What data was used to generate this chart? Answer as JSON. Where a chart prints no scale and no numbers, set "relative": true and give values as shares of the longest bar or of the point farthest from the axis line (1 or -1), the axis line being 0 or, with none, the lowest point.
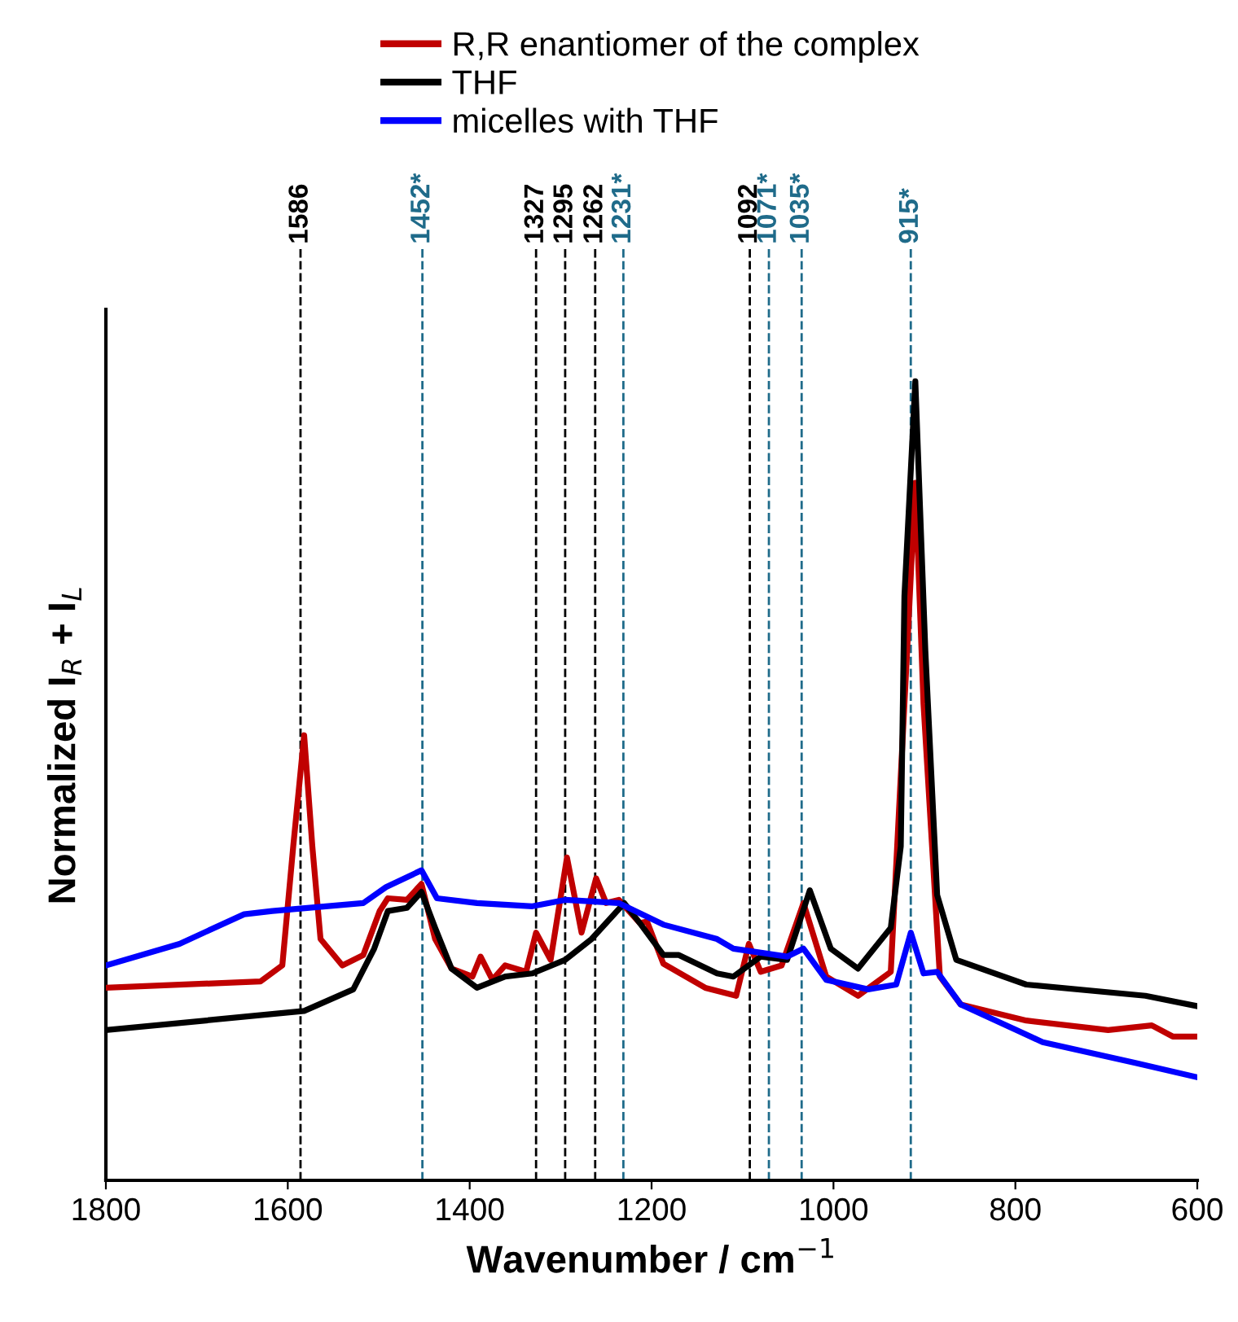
{
  "chart_data": {
    "type": "line",
    "xlabel": "Wavenumber / cm$^{−1}$",
    "ylabel": "Normalized I$_{R}$ + I$_{L}$",
    "relative": true,
    "xlim": [
      1800,
      600
    ],
    "xticks": [
      1800,
      1600,
      1400,
      1200,
      1000,
      800,
      600
    ],
    "grid": false,
    "legend": "top",
    "marker": "none",
    "line_style": "solid",
    "series": [
      {
        "name": "R,R enantiomer of the complex",
        "color": "#c00000",
        "x": [
          1800,
          1630,
          1606,
          1594,
          1582,
          1573,
          1564,
          1540,
          1517,
          1499,
          1490,
          1469,
          1453,
          1438,
          1420,
          1397,
          1388,
          1375,
          1361,
          1338,
          1327,
          1311,
          1293,
          1277,
          1261,
          1250,
          1236,
          1213,
          1205,
          1187,
          1141,
          1107,
          1093,
          1080,
          1057,
          1033,
          1008,
          973,
          937,
          919,
          910,
          901,
          883,
          860,
          788,
          698,
          650,
          627,
          600
        ],
        "values": [
          0.241,
          0.249,
          0.269,
          0.418,
          0.557,
          0.418,
          0.302,
          0.269,
          0.282,
          0.337,
          0.353,
          0.351,
          0.371,
          0.302,
          0.265,
          0.255,
          0.28,
          0.251,
          0.269,
          0.261,
          0.31,
          0.276,
          0.404,
          0.31,
          0.378,
          0.347,
          0.351,
          0.322,
          0.324,
          0.271,
          0.241,
          0.231,
          0.296,
          0.261,
          0.269,
          0.347,
          0.255,
          0.231,
          0.261,
          0.663,
          0.873,
          0.596,
          0.255,
          0.22,
          0.2,
          0.188,
          0.194,
          0.18,
          0.18
        ]
      },
      {
        "name": "THF",
        "color": "#000000",
        "x": [
          1800,
          1582,
          1528,
          1505,
          1490,
          1469,
          1453,
          1438,
          1420,
          1392,
          1361,
          1331,
          1295,
          1266,
          1230,
          1213,
          1187,
          1170,
          1128,
          1110,
          1080,
          1051,
          1026,
          1003,
          973,
          937,
          926,
          922,
          910,
          899,
          886,
          865,
          788,
          657,
          600
        ],
        "values": [
          0.188,
          0.212,
          0.239,
          0.29,
          0.337,
          0.341,
          0.361,
          0.316,
          0.265,
          0.241,
          0.255,
          0.259,
          0.276,
          0.302,
          0.347,
          0.322,
          0.282,
          0.282,
          0.259,
          0.255,
          0.28,
          0.276,
          0.363,
          0.29,
          0.265,
          0.316,
          0.418,
          0.731,
          1.0,
          0.663,
          0.357,
          0.276,
          0.245,
          0.231,
          0.218
        ]
      },
      {
        "name": "micelles with THF",
        "color": "#0000ff",
        "x": [
          1800,
          1719,
          1648,
          1617,
          1517,
          1492,
          1453,
          1436,
          1392,
          1331,
          1295,
          1236,
          1187,
          1128,
          1110,
          1051,
          1033,
          1008,
          962,
          931,
          915,
          901,
          886,
          860,
          770,
          668,
          600
        ],
        "values": [
          0.269,
          0.296,
          0.333,
          0.337,
          0.347,
          0.367,
          0.388,
          0.353,
          0.347,
          0.343,
          0.351,
          0.347,
          0.32,
          0.302,
          0.29,
          0.28,
          0.29,
          0.251,
          0.239,
          0.245,
          0.31,
          0.259,
          0.261,
          0.22,
          0.173,
          0.147,
          0.129
        ]
      }
    ],
    "ref_lines": [
      {
        "axis": "x",
        "value": 1586,
        "label": "1586",
        "color": "#000000",
        "line_style": "dashed"
      },
      {
        "axis": "x",
        "value": 1452,
        "label": "1452*",
        "color": "#1f6b8a",
        "line_style": "dashed"
      },
      {
        "axis": "x",
        "value": 1327,
        "label": "1327",
        "color": "#000000",
        "line_style": "dashed"
      },
      {
        "axis": "x",
        "value": 1295,
        "label": "1295",
        "color": "#000000",
        "line_style": "dashed"
      },
      {
        "axis": "x",
        "value": 1262,
        "label": "1262",
        "color": "#000000",
        "line_style": "dashed"
      },
      {
        "axis": "x",
        "value": 1231,
        "label": "1231*",
        "color": "#1f6b8a",
        "line_style": "dashed"
      },
      {
        "axis": "x",
        "value": 1092,
        "label": "1092",
        "color": "#000000",
        "line_style": "dashed"
      },
      {
        "axis": "x",
        "value": 1071,
        "label": "1071*",
        "color": "#1f6b8a",
        "line_style": "dashed"
      },
      {
        "axis": "x",
        "value": 1035,
        "label": "1035*",
        "color": "#1f6b8a",
        "line_style": "dashed"
      },
      {
        "axis": "x",
        "value": 915,
        "label": "915*",
        "color": "#1f6b8a",
        "line_style": "dashed"
      }
    ]
  }
}
